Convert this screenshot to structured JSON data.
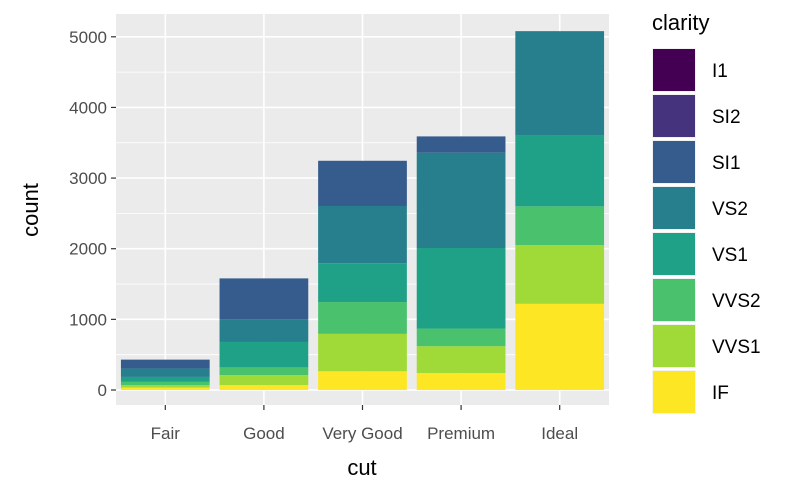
{
  "chart_data": {
    "type": "bar",
    "stacked": true,
    "categories": [
      "Fair",
      "Good",
      "Very Good",
      "Premium",
      "Ideal"
    ],
    "xlabel": "cut",
    "ylabel": "count",
    "ylim": [
      0,
      5200
    ],
    "yticks": [
      0,
      1000,
      2000,
      3000,
      4000,
      5000
    ],
    "grid": true,
    "legend_title": "clarity",
    "legend_position": "right",
    "series": [
      {
        "name": "I1",
        "color": "#440154",
        "values": [
          0,
          0,
          0,
          0,
          0
        ]
      },
      {
        "name": "SI2",
        "color": "#46337E",
        "values": [
          0,
          0,
          0,
          0,
          0
        ]
      },
      {
        "name": "SI1",
        "color": "#365C8D",
        "values": [
          125,
          580,
          640,
          230,
          0
        ]
      },
      {
        "name": "VS2",
        "color": "#277F8E",
        "values": [
          120,
          320,
          810,
          1350,
          1480
        ]
      },
      {
        "name": "VS1",
        "color": "#1FA187",
        "values": [
          70,
          360,
          550,
          1140,
          1000
        ]
      },
      {
        "name": "VVS2",
        "color": "#4AC16D",
        "values": [
          45,
          110,
          450,
          250,
          550
        ]
      },
      {
        "name": "VVS1",
        "color": "#A0DA39",
        "values": [
          35,
          140,
          530,
          380,
          830
        ]
      },
      {
        "name": "IF",
        "color": "#FDE725",
        "values": [
          35,
          70,
          265,
          240,
          1220
        ]
      }
    ]
  }
}
